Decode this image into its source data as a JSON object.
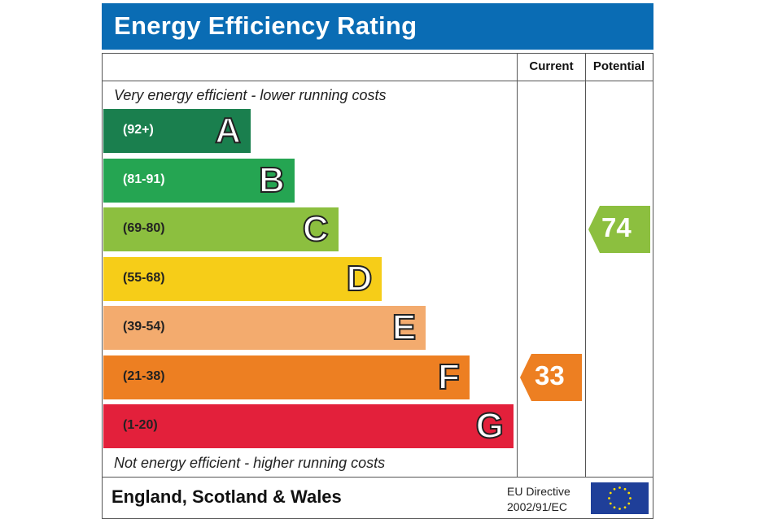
{
  "header": {
    "title": "Energy Efficiency Rating"
  },
  "columns": {
    "current": "Current",
    "potential": "Potential"
  },
  "captions": {
    "top": "Very energy efficient - lower running costs",
    "bottom": "Not energy efficient - higher running costs"
  },
  "footer": {
    "region": "England, Scotland & Wales",
    "directive_line1": "EU Directive",
    "directive_line2": "2002/91/EC",
    "flag_icon": "eu-flag-icon"
  },
  "chart_data": {
    "type": "bar",
    "title": "Energy Efficiency Rating",
    "bands": [
      {
        "letter": "A",
        "range": "(92+)",
        "color": "#1a7f4e",
        "rank": 1
      },
      {
        "letter": "B",
        "range": "(81-91)",
        "color": "#25a552",
        "rank": 2
      },
      {
        "letter": "C",
        "range": "(69-80)",
        "color": "#8cbf3f",
        "rank": 3
      },
      {
        "letter": "D",
        "range": "(55-68)",
        "color": "#f6cd18",
        "rank": 4
      },
      {
        "letter": "E",
        "range": "(39-54)",
        "color": "#f3ab6e",
        "rank": 5
      },
      {
        "letter": "F",
        "range": "(21-38)",
        "color": "#ed7f22",
        "rank": 6
      },
      {
        "letter": "G",
        "range": "(1-20)",
        "color": "#e3203b",
        "rank": 7
      }
    ],
    "current": {
      "value": 33,
      "band": "F",
      "color": "#ed7f22"
    },
    "potential": {
      "value": 74,
      "band": "C",
      "color": "#8cbf3f"
    }
  }
}
